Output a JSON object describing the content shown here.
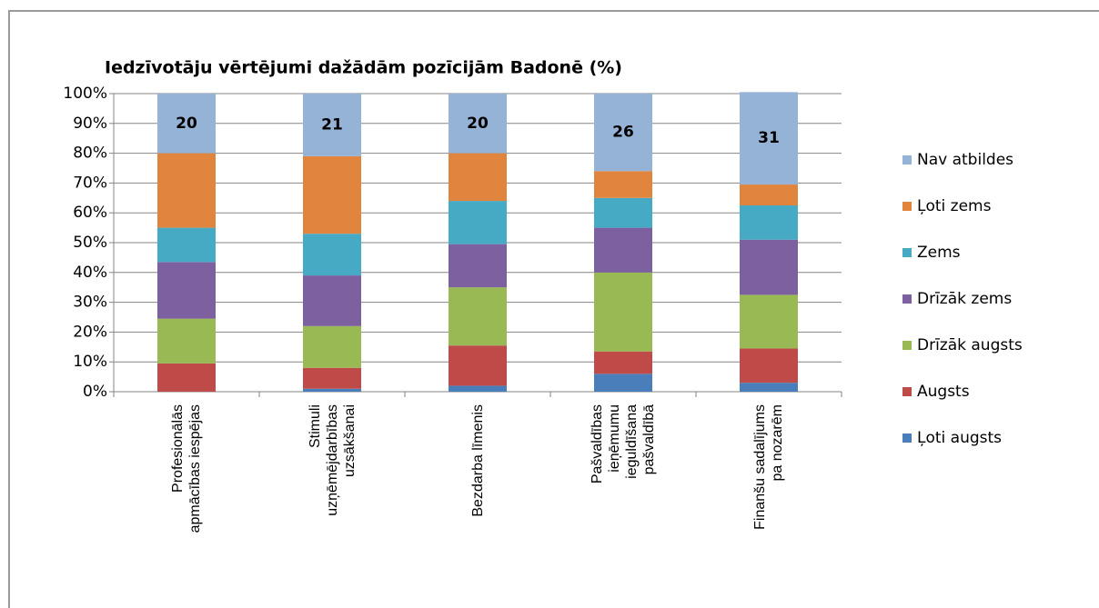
{
  "chart_data": {
    "type": "stacked_bar",
    "title": "Iedzīvotāju vērtējumi dažādām  pozīcijām Badonē (%)",
    "categories": [
      "Profesionālās apmācības iespējas",
      "Stimuli uzņēmējdarbības uzsākšanai",
      "Bezdarba līmenis",
      "Pašvaldības ieņēmumu ieguldīšana pašvaldībā",
      "Finanšu sadalījums pa nozarēm"
    ],
    "series": [
      {
        "name": "Ļoti augsts",
        "color": "#4a7ebb",
        "values": [
          0,
          1,
          2,
          6,
          3
        ]
      },
      {
        "name": "Augsts",
        "color": "#be4b48",
        "values": [
          9.5,
          7,
          13.5,
          7.5,
          11.5
        ]
      },
      {
        "name": "Drīzāk augsts",
        "color": "#98b954",
        "values": [
          15,
          14,
          19.5,
          26.5,
          18
        ]
      },
      {
        "name": "Drīzāk zems",
        "color": "#7d60a0",
        "values": [
          19,
          17,
          14.5,
          15,
          18.5
        ]
      },
      {
        "name": "Zems",
        "color": "#46aac5",
        "values": [
          11.5,
          14,
          14.5,
          10,
          11.5
        ]
      },
      {
        "name": "Ļoti zems",
        "color": "#e0843e",
        "values": [
          25,
          26,
          16,
          9,
          7
        ]
      },
      {
        "name": "Nav atbildes",
        "color": "#95b3d7",
        "values": [
          20,
          21,
          20,
          26,
          31
        ],
        "show_labels": true
      }
    ],
    "ylim": [
      0,
      100
    ],
    "yticks": [
      {
        "value": 0,
        "label": "0%"
      },
      {
        "value": 10,
        "label": "10%"
      },
      {
        "value": 20,
        "label": "20%"
      },
      {
        "value": 30,
        "label": "30%"
      },
      {
        "value": 40,
        "label": "40%"
      },
      {
        "value": 50,
        "label": "50%"
      },
      {
        "value": 60,
        "label": "60%"
      },
      {
        "value": 70,
        "label": "70%"
      },
      {
        "value": 80,
        "label": "80%"
      },
      {
        "value": 90,
        "label": "90%"
      },
      {
        "value": 100,
        "label": "100%"
      }
    ],
    "grid": true,
    "legend": "right"
  }
}
